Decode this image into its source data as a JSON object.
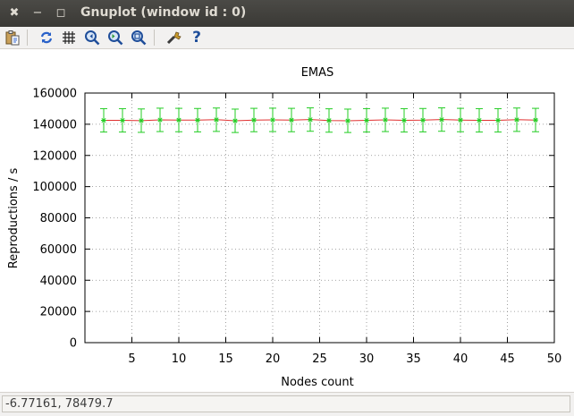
{
  "window": {
    "title": "Gnuplot (window id : 0)",
    "close_glyph": "✖",
    "minimize_glyph": "−",
    "maximize_glyph": "◻"
  },
  "toolbar": {
    "icons": [
      "clipboard-copy-icon",
      "replot-icon",
      "grid-icon",
      "zoom-previous-icon",
      "zoom-next-icon",
      "unzoom-icon",
      "preferences-icon",
      "help-icon"
    ],
    "help_glyph": "?"
  },
  "status": {
    "coordinates": "-6.77161, 78479.7"
  },
  "colors": {
    "line": "#e03030",
    "errorbars": "#22cc22",
    "grid": "#888888"
  },
  "chart_data": {
    "type": "line",
    "title": "EMAS",
    "xlabel": "Nodes count",
    "ylabel": "Reproductions / s",
    "xlim": [
      0,
      50
    ],
    "ylim": [
      0,
      160000
    ],
    "xticks": [
      5,
      10,
      15,
      20,
      25,
      30,
      35,
      40,
      45,
      50
    ],
    "yticks": [
      0,
      20000,
      40000,
      60000,
      80000,
      100000,
      120000,
      140000,
      160000
    ],
    "grid": true,
    "series": [
      {
        "x": [
          2,
          4,
          6,
          8,
          10,
          12,
          14,
          16,
          18,
          20,
          22,
          24,
          26,
          28,
          30,
          32,
          34,
          36,
          38,
          40,
          42,
          44,
          46,
          48
        ],
        "values": [
          142500,
          142500,
          142300,
          142800,
          142700,
          142600,
          142900,
          142200,
          142700,
          142800,
          142700,
          143000,
          142400,
          142200,
          142500,
          142800,
          142500,
          142600,
          143000,
          142700,
          142500,
          142500,
          142900,
          142700
        ],
        "errors": [
          7500,
          7500,
          7500,
          7500,
          7500,
          7500,
          7500,
          7500,
          7500,
          7500,
          7500,
          7500,
          7500,
          7500,
          7500,
          7500,
          7500,
          7500,
          7500,
          7500,
          7500,
          7500,
          7500,
          7500
        ]
      }
    ]
  }
}
